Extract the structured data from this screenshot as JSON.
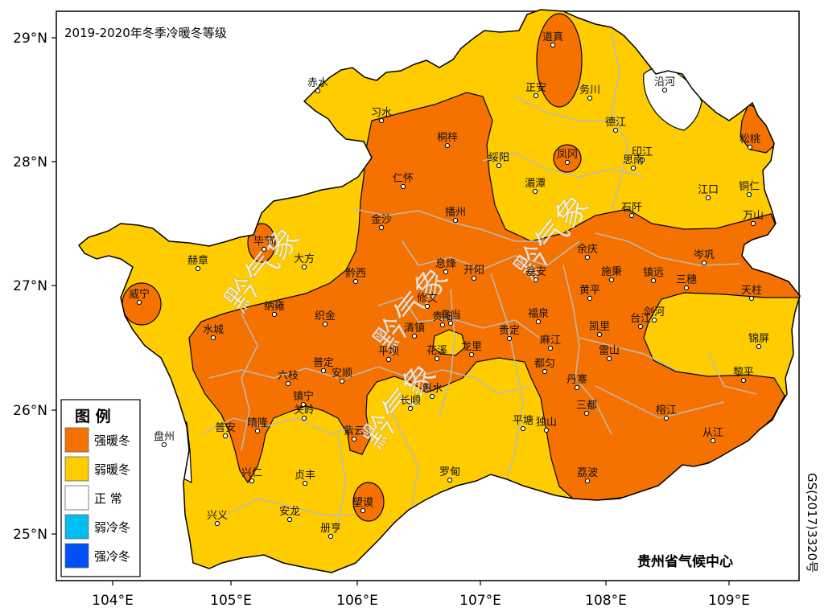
{
  "map": {
    "title": "2019-2020年冬季冷暖冬等级",
    "organization": "贵州省气候中心",
    "map_code": "GS(2017)3320号",
    "watermark": "黔气象",
    "colors": {
      "strong_warm": "#F57200",
      "weak_warm": "#FFCC00",
      "normal": "#FFFFFF",
      "weak_cold": "#00BFF0",
      "strong_cold": "#0050F5",
      "county_border": "#BBBBBB",
      "contour": "#000000"
    },
    "axes": {
      "x_ticks": [
        "104°E",
        "105°E",
        "106°E",
        "107°E",
        "108°E",
        "109°E"
      ],
      "y_ticks": [
        "29°N",
        "28°N",
        "27°N",
        "26°N",
        "25°N"
      ]
    },
    "legend": {
      "title": "图 例",
      "items": [
        {
          "label": "强暖冬",
          "color": "#F57200"
        },
        {
          "label": "弱暖冬",
          "color": "#FFCC00"
        },
        {
          "label": "正 常",
          "color": "#FFFFFF"
        },
        {
          "label": "弱冷冬",
          "color": "#00BFF0"
        },
        {
          "label": "强冷冬",
          "color": "#0050F5"
        }
      ]
    },
    "stations": [
      {
        "name": "道真"
      },
      {
        "name": "务川"
      },
      {
        "name": "沿河"
      },
      {
        "name": "正安"
      },
      {
        "name": "赤水"
      },
      {
        "name": "习水"
      },
      {
        "name": "桐梓"
      },
      {
        "name": "绥阳"
      },
      {
        "name": "凤冈"
      },
      {
        "name": "德江"
      },
      {
        "name": "印江"
      },
      {
        "name": "思南"
      },
      {
        "name": "松桃"
      },
      {
        "name": "湄潭"
      },
      {
        "name": "仁怀"
      },
      {
        "name": "江口"
      },
      {
        "name": "铜仁"
      },
      {
        "name": "金沙"
      },
      {
        "name": "播州"
      },
      {
        "name": "石阡"
      },
      {
        "name": "万山"
      },
      {
        "name": "赫章"
      },
      {
        "name": "毕节"
      },
      {
        "name": "大方"
      },
      {
        "name": "息烽"
      },
      {
        "name": "余庆"
      },
      {
        "name": "岑巩"
      },
      {
        "name": "黔西"
      },
      {
        "name": "开阳"
      },
      {
        "name": "瓮安"
      },
      {
        "name": "施秉"
      },
      {
        "name": "镇远"
      },
      {
        "name": "三穗"
      },
      {
        "name": "天柱"
      },
      {
        "name": "威宁"
      },
      {
        "name": "纳雍"
      },
      {
        "name": "织金"
      },
      {
        "name": "修文"
      },
      {
        "name": "黄平"
      },
      {
        "name": "福泉"
      },
      {
        "name": "剑河"
      },
      {
        "name": "台江"
      },
      {
        "name": "乌当"
      },
      {
        "name": "清镇"
      },
      {
        "name": "水城"
      },
      {
        "name": "贵阳"
      },
      {
        "name": "凯里"
      },
      {
        "name": "锦屏"
      },
      {
        "name": "平坝"
      },
      {
        "name": "花溪"
      },
      {
        "name": "龙里"
      },
      {
        "name": "贵定"
      },
      {
        "name": "麻江"
      },
      {
        "name": "雷山"
      },
      {
        "name": "普定"
      },
      {
        "name": "安顺"
      },
      {
        "name": "六枝"
      },
      {
        "name": "都匀"
      },
      {
        "name": "丹寨"
      },
      {
        "name": "黎平"
      },
      {
        "name": "镇宁"
      },
      {
        "name": "惠水"
      },
      {
        "name": "长顺"
      },
      {
        "name": "关岭"
      },
      {
        "name": "三都"
      },
      {
        "name": "普安"
      },
      {
        "name": "晴隆"
      },
      {
        "name": "平塘"
      },
      {
        "name": "独山"
      },
      {
        "name": "榕江"
      },
      {
        "name": "从江"
      },
      {
        "name": "盘州"
      },
      {
        "name": "紫云"
      },
      {
        "name": "兴仁"
      },
      {
        "name": "贞丰"
      },
      {
        "name": "罗甸"
      },
      {
        "name": "荔波"
      },
      {
        "name": "望谟"
      },
      {
        "name": "兴义"
      },
      {
        "name": "安龙"
      },
      {
        "name": "册亨"
      }
    ]
  }
}
